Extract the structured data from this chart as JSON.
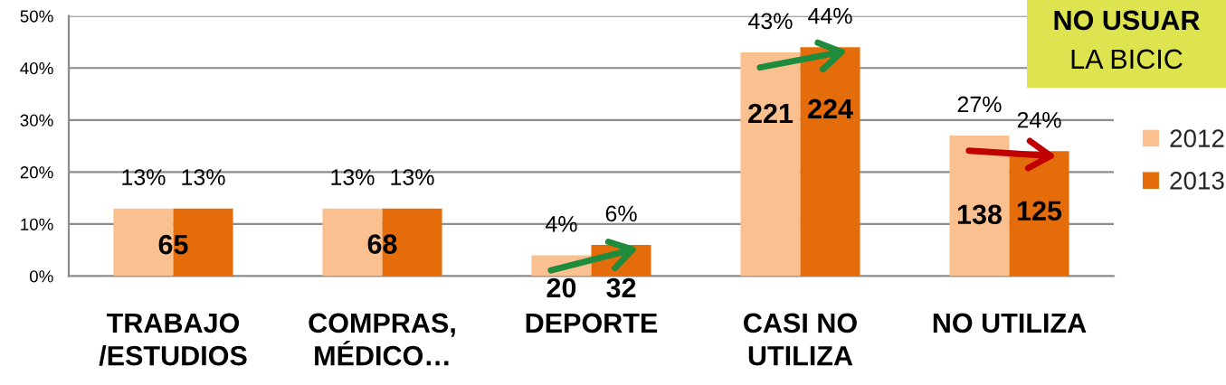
{
  "chart_data": {
    "type": "bar",
    "title": "NO USUAR",
    "subtitle": "LA BICIC",
    "categories": [
      "TRABAJO\n/ESTUDIOS",
      "COMPRAS,\nMÉDICO…",
      "DEPORTE",
      "CASI NO\nUTILIZA",
      "NO UTILIZA"
    ],
    "series": [
      {
        "name": "2012",
        "color": "#fac090",
        "values": [
          13,
          13,
          4,
          43,
          27
        ],
        "value_labels": [
          "13%",
          "13%",
          "4%",
          "43%",
          "27%"
        ]
      },
      {
        "name": "2013",
        "color": "#e46c0a",
        "values": [
          13,
          13,
          6,
          44,
          24
        ],
        "value_labels": [
          "13%",
          "13%",
          "6%",
          "44%",
          "24%"
        ]
      }
    ],
    "ylim": [
      0,
      50
    ],
    "yticks": [
      {
        "value": 0,
        "label": "0%"
      },
      {
        "value": 10,
        "label": "10%"
      },
      {
        "value": 20,
        "label": "20%"
      },
      {
        "value": 30,
        "label": "30%"
      },
      {
        "value": 40,
        "label": "40%"
      },
      {
        "value": 50,
        "label": "50%"
      }
    ],
    "grid": "y",
    "legend": "right",
    "annotations": [
      {
        "text": "65",
        "x": "TRABAJO\n/ESTUDIOS",
        "y": 5.6
      },
      {
        "text": "68",
        "x": "COMPRAS,\nMÉDICO…",
        "y": 5.7
      },
      {
        "text": "20",
        "x": "DEPORTE",
        "y": 0
      },
      {
        "text": "32",
        "x": "DEPORTE",
        "y": 0
      },
      {
        "text": "221",
        "x": "CASI NO\nUTILIZA",
        "y": 30.8
      },
      {
        "text": "224",
        "x": "CASI NO\nUTILIZA",
        "y": 31.7
      },
      {
        "text": "138",
        "x": "NO UTILIZA",
        "y": 11.4
      },
      {
        "text": "125",
        "x": "NO UTILIZA",
        "y": 12.1
      }
    ]
  }
}
